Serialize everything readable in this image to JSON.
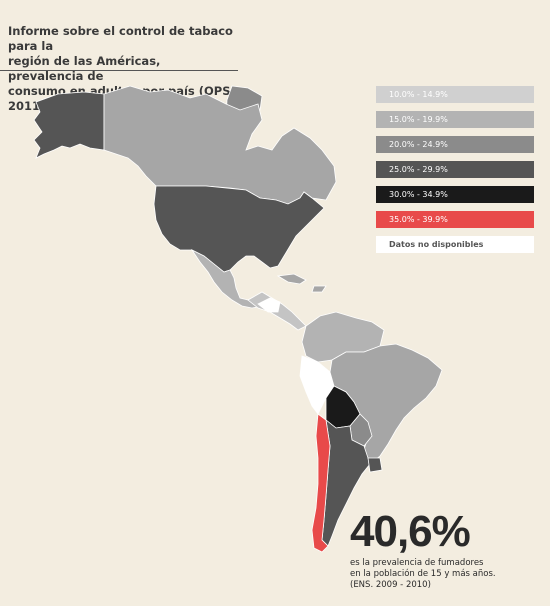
{
  "header": {
    "title_lines": [
      "Informe sobre el control de tabaco para la",
      "región de las Américas, prevalencia de",
      "consumo en adultos por país (OPS 2011)"
    ]
  },
  "legend": {
    "items": [
      {
        "label": "10.0% - 14.9%",
        "color": "#d0d0d0",
        "text_color": "#ffffff"
      },
      {
        "label": "15.0% - 19.9%",
        "color": "#b3b3b3",
        "text_color": "#ffffff"
      },
      {
        "label": "20.0% - 24.9%",
        "color": "#8b8b8b",
        "text_color": "#ffffff"
      },
      {
        "label": "25.0% - 29.9%",
        "color": "#555555",
        "text_color": "#ffffff"
      },
      {
        "label": "30.0% - 34.9%",
        "color": "#1a1a1a",
        "text_color": "#ffffff"
      },
      {
        "label": "35.0% - 39.9%",
        "color": "#e84a4a",
        "text_color": "#ffffff"
      },
      {
        "label": "Datos no disponibles",
        "color": "#ffffff",
        "text_color": "#555555"
      }
    ]
  },
  "map_colors": {
    "alaska": "#555555",
    "canada": "#a6a6a6",
    "greenland": "#8b8b8b",
    "usa": "#555555",
    "mexico": "#b3b3b3",
    "central_america": "#c4c4c4",
    "nodata": "#ffffff",
    "caribbean": "#a6a6a6",
    "northern_sa": "#b3b3b3",
    "brazil": "#a6a6a6",
    "bolivia": "#1a1a1a",
    "paraguay": "#8b8b8b",
    "argentina": "#555555",
    "uruguay": "#555555",
    "chile": "#e84a4a"
  },
  "stat": {
    "value": "40,6%",
    "caption_lines": [
      "es la prevalencia de fumadores",
      "en la población de 15 y más años.",
      "(ENS. 2009 - 2010)"
    ]
  }
}
